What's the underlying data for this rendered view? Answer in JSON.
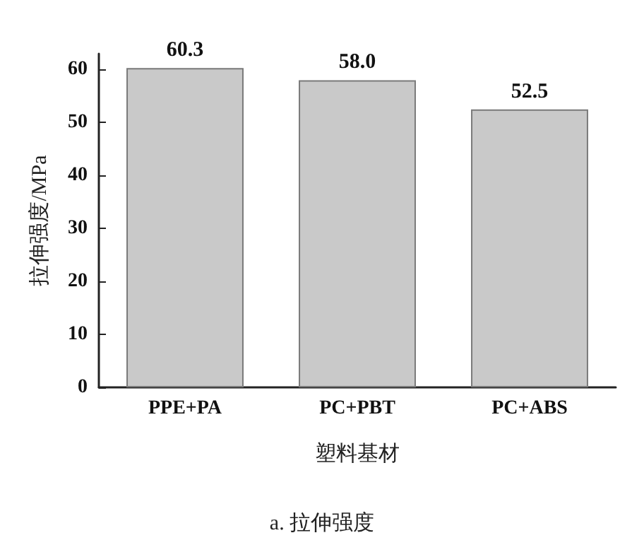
{
  "chart_data": {
    "type": "bar",
    "categories": [
      "PPE+PA",
      "PC+PBT",
      "PC+ABS"
    ],
    "values": [
      60.3,
      58.0,
      52.5
    ],
    "value_labels": [
      "60.3",
      "58.0",
      "52.5"
    ],
    "color": "#c9c9c9",
    "xlabel": "塑料基材",
    "ylabel": "拉伸强度/MPa",
    "annotations": [
      "a. 拉伸强度"
    ],
    "ylim": [
      0,
      63
    ],
    "yticks": [
      0,
      10,
      20,
      30,
      40,
      50,
      60
    ],
    "grid": false
  }
}
